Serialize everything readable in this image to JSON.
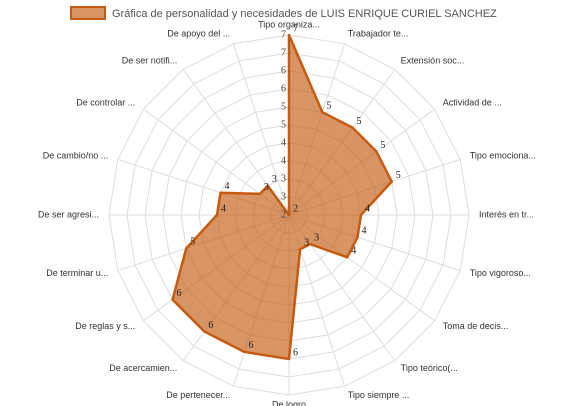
{
  "chart_data": {
    "type": "radar",
    "categories": [
      "Tipo organiza...",
      "Trabajador te...",
      "Extensión soc...",
      "Actividad de ...",
      "Tipo emociona...",
      "Interés en tr...",
      "Tipo vigoroso...",
      "Toma de decis...",
      "Tipo teórico(...",
      "Tipo siempre ...",
      "De logro",
      "De pertenecer...",
      "De acercamien...",
      "De reglas y s...",
      "De terminar u...",
      "De ser agresi...",
      "De cambio/no ...",
      "De controlar ...",
      "De ser notifi...",
      "De apoyo del ..."
    ],
    "series": [
      {
        "name": "Gráfica de personalidad y necesidades de LUIS ENRIQUE CURIEL SANCHEZ",
        "color": "#c55a11",
        "values": [
          7,
          5,
          5,
          5,
          5,
          4,
          4,
          4,
          3,
          3,
          6,
          6,
          6,
          6,
          5,
          4,
          4,
          3,
          3,
          2
        ]
      }
    ],
    "rlim": [
      2,
      7
    ],
    "rticks": [
      2,
      {
        "value": 2.5,
        "label": "3"
      },
      3,
      {
        "value": 3.5,
        "label": "4"
      },
      4,
      {
        "value": 4.5,
        "label": "5"
      },
      5,
      {
        "value": 5.5,
        "label": "6"
      },
      6,
      {
        "value": 6.5,
        "label": "7"
      },
      7
    ],
    "grid": true,
    "legend": "top"
  }
}
